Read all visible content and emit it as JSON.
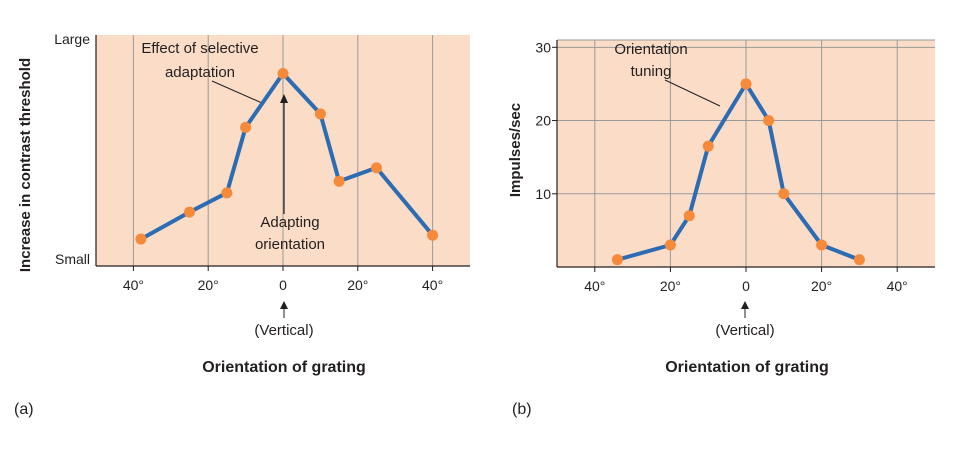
{
  "chart_data": [
    {
      "type": "line",
      "panel_label": "(a)",
      "x": [
        -38,
        -25,
        -15,
        -10,
        0,
        10,
        15,
        25,
        40
      ],
      "y": [
        0.14,
        0.28,
        0.38,
        0.72,
        1.0,
        0.79,
        0.44,
        0.51,
        0.16
      ],
      "xlim": [
        -50,
        50
      ],
      "ylim": [
        0,
        1.2
      ],
      "xticks": [
        -40,
        -20,
        0,
        20,
        40
      ],
      "xtick_labels": [
        "40°",
        "20°",
        "0",
        "20°",
        "40°"
      ],
      "yticks": [],
      "y_min_label": "Small",
      "y_max_label": "Large",
      "xlabel": "Orientation of grating",
      "ylabel": "Increase in contrast threshold",
      "vertical_label": "(Vertical)",
      "annotations": [
        {
          "text": [
            "Effect of selective",
            "adaptation"
          ]
        },
        {
          "text": [
            "Adapting",
            "orientation"
          ]
        }
      ],
      "line_color": "#2b6cb4",
      "marker_color": "#f58a3a",
      "background_color": "#fbdcc6",
      "grid": true
    },
    {
      "type": "line",
      "panel_label": "(b)",
      "x": [
        -34,
        -20,
        -15,
        -10,
        0,
        6,
        10,
        20,
        30
      ],
      "y": [
        1,
        3,
        7,
        16.5,
        25,
        20,
        10,
        3,
        1
      ],
      "xlim": [
        -50,
        50
      ],
      "ylim": [
        0,
        31
      ],
      "xticks": [
        -40,
        -20,
        0,
        20,
        40
      ],
      "xtick_labels": [
        "40°",
        "20°",
        "0",
        "20°",
        "40°"
      ],
      "yticks": [
        10,
        20,
        30
      ],
      "ytick_labels": [
        "10",
        "20",
        "30"
      ],
      "xlabel": "Orientation of grating",
      "ylabel": "Impulses/sec",
      "vertical_label": "(Vertical)",
      "annotations": [
        {
          "text": [
            "Orientation",
            "tuning"
          ]
        }
      ],
      "line_color": "#2b6cb4",
      "marker_color": "#f58a3a",
      "background_color": "#fbdcc6",
      "grid": true
    }
  ]
}
